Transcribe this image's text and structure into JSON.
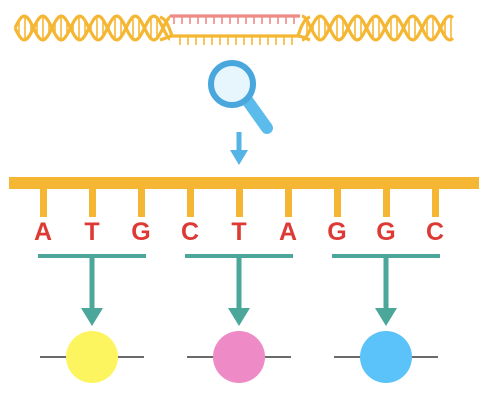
{
  "colors": {
    "dna_strand": "#F5B733",
    "dna_highlight": "#EE8A85",
    "magnifier": "#5BBCEB",
    "magnifier_ring": "#4AA7DD",
    "magnifier_lens": "#E7F5FD",
    "arrow_down": "#54B4E6",
    "backbone": "#F5B733",
    "base_letter": "#DD3A35",
    "codon_bracket": "#4BA79A",
    "amino_line": "#111111",
    "background": "#FFFFFF"
  },
  "icons": {
    "search": "magnifying-glass-icon",
    "arrow": "arrow-down-icon"
  },
  "bases": [
    "A",
    "T",
    "G",
    "C",
    "T",
    "A",
    "G",
    "G",
    "C"
  ],
  "codons": [
    {
      "bases": [
        "A",
        "T",
        "G"
      ],
      "amino_color": "#FDF55F"
    },
    {
      "bases": [
        "C",
        "T",
        "A"
      ],
      "amino_color": "#EE8AC6"
    },
    {
      "bases": [
        "G",
        "G",
        "C"
      ],
      "amino_color": "#5BC3F9"
    }
  ]
}
